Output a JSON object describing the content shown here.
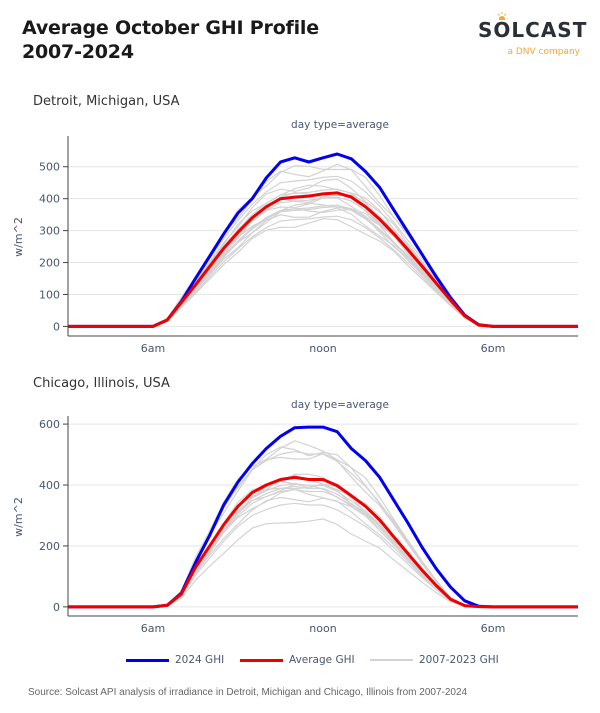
{
  "header": {
    "title_line1": "Average October GHI Profile",
    "title_line2": "2007-2024"
  },
  "logo": {
    "brand": "SOLCAST",
    "tagline": "a DNV company",
    "brand_color": "#2b2f36",
    "accent_color": "#f5a63a"
  },
  "legend": {
    "items": [
      {
        "label": "2024 GHI",
        "color": "#0000ee"
      },
      {
        "label": "Average GHI",
        "color": "#ee0000"
      },
      {
        "label": "2007-2023 GHI",
        "color": "#d3d3d3"
      }
    ]
  },
  "footer": {
    "source": "Source: Solcast API analysis of irradiance in Detroit, Michigan and Chicago, Illinois from 2007-2024"
  },
  "chart_data": [
    {
      "type": "line",
      "title": "day type=average",
      "subtitle": "Detroit, Michigan, USA",
      "xlabel": "",
      "ylabel": "w/m^2",
      "xlim_hours": [
        3,
        21
      ],
      "ylim": [
        -30,
        590
      ],
      "x_ticks": [
        {
          "hour": 6,
          "label": "6am"
        },
        {
          "hour": 12,
          "label": "noon"
        },
        {
          "hour": 18,
          "label": "6pm"
        }
      ],
      "y_ticks": [
        0,
        100,
        200,
        300,
        400,
        500
      ],
      "grid": true,
      "legend": "bottom",
      "x_hours": [
        3,
        3.5,
        4,
        4.5,
        5,
        5.5,
        6,
        6.5,
        7,
        7.5,
        8,
        8.5,
        9,
        9.5,
        10,
        10.5,
        11,
        11.5,
        12,
        12.5,
        13,
        13.5,
        14,
        14.5,
        15,
        15.5,
        16,
        16.5,
        17,
        17.5,
        18,
        18.5,
        19,
        19.5,
        20,
        20.5,
        21
      ],
      "series": [
        {
          "name": "2024 GHI",
          "color": "#0000ee",
          "values": [
            0,
            0,
            0,
            0,
            0,
            0,
            0,
            20,
            78,
            150,
            220,
            290,
            355,
            400,
            465,
            515,
            528,
            515,
            528,
            540,
            525,
            485,
            435,
            365,
            295,
            225,
            155,
            90,
            35,
            5,
            0,
            0,
            0,
            0,
            0,
            0,
            0
          ]
        },
        {
          "name": "Average GHI",
          "color": "#ee0000",
          "values": [
            0,
            0,
            0,
            0,
            0,
            0,
            0,
            20,
            75,
            130,
            188,
            245,
            295,
            340,
            375,
            400,
            405,
            408,
            415,
            418,
            405,
            375,
            335,
            290,
            240,
            188,
            135,
            82,
            33,
            4,
            0,
            0,
            0,
            0,
            0,
            0,
            0
          ]
        }
      ],
      "background_series": {
        "name": "2007-2023 GHI",
        "color": "#d3d3d3",
        "peak_values": [
          330,
          345,
          360,
          370,
          380,
          385,
          395,
          405,
          410,
          420,
          430,
          440,
          450,
          470,
          495,
          505,
          375
        ]
      }
    },
    {
      "type": "line",
      "title": "day type=average",
      "subtitle": "Chicago, Illinois, USA",
      "xlabel": "",
      "ylabel": "w/m^2",
      "xlim_hours": [
        3,
        21
      ],
      "ylim": [
        -30,
        620
      ],
      "x_ticks": [
        {
          "hour": 6,
          "label": "6am"
        },
        {
          "hour": 12,
          "label": "noon"
        },
        {
          "hour": 18,
          "label": "6pm"
        }
      ],
      "y_ticks": [
        0,
        200,
        400,
        600
      ],
      "grid": true,
      "legend": "bottom",
      "x_hours": [
        3,
        3.5,
        4,
        4.5,
        5,
        5.5,
        6,
        6.5,
        7,
        7.5,
        8,
        8.5,
        9,
        9.5,
        10,
        10.5,
        11,
        11.5,
        12,
        12.5,
        13,
        13.5,
        14,
        14.5,
        15,
        15.5,
        16,
        16.5,
        17,
        17.5,
        18,
        18.5,
        19,
        19.5,
        20,
        20.5,
        21
      ],
      "series": [
        {
          "name": "2024 GHI",
          "color": "#0000ee",
          "values": [
            0,
            0,
            0,
            0,
            0,
            0,
            0,
            5,
            45,
            145,
            235,
            335,
            410,
            470,
            520,
            560,
            588,
            590,
            590,
            575,
            520,
            480,
            425,
            350,
            275,
            195,
            125,
            65,
            20,
            2,
            0,
            0,
            0,
            0,
            0,
            0,
            0
          ]
        },
        {
          "name": "Average GHI",
          "color": "#ee0000",
          "values": [
            0,
            0,
            0,
            0,
            0,
            0,
            0,
            5,
            42,
            130,
            200,
            270,
            330,
            375,
            400,
            418,
            425,
            418,
            418,
            398,
            365,
            330,
            285,
            230,
            175,
            120,
            70,
            25,
            4,
            1,
            0,
            0,
            0,
            0,
            0,
            0,
            0
          ]
        }
      ],
      "background_series": {
        "name": "2007-2023 GHI",
        "color": "#d3d3d3",
        "peak_values": [
          285,
          340,
          360,
          375,
          385,
          395,
          400,
          405,
          410,
          420,
          425,
          430,
          500,
          510,
          520,
          530,
          395
        ]
      }
    }
  ]
}
